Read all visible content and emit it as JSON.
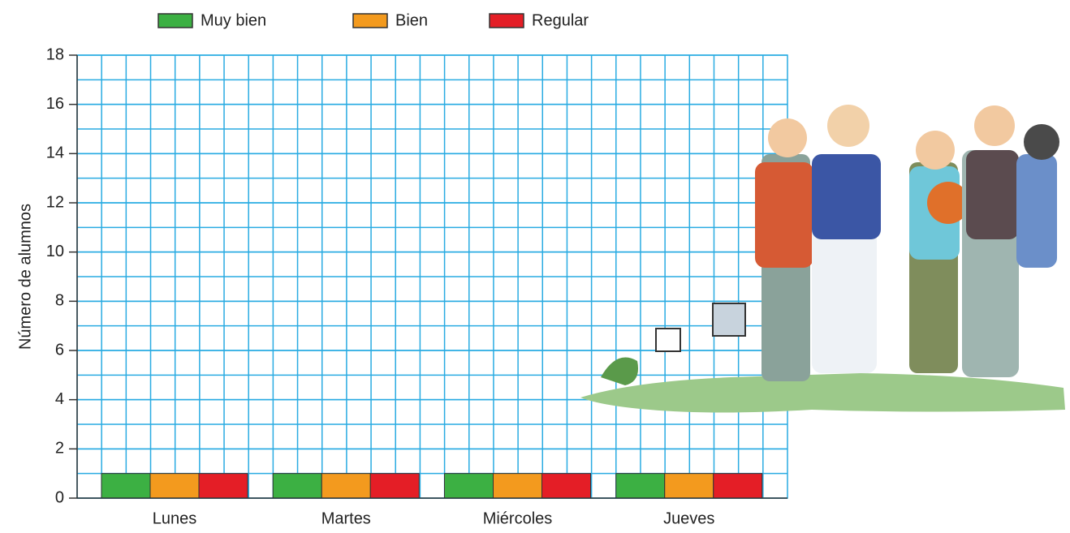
{
  "chart_data": {
    "type": "bar",
    "categories": [
      "Lunes",
      "Martes",
      "Miércoles",
      "Jueves"
    ],
    "series": [
      {
        "name": "Muy bien",
        "color": "#3cb043",
        "values": [
          1,
          1,
          1,
          1
        ]
      },
      {
        "name": "Bien",
        "color": "#f39a1e",
        "values": [
          1,
          1,
          1,
          1
        ]
      },
      {
        "name": "Regular",
        "color": "#e41e26",
        "values": [
          1,
          1,
          1,
          1
        ]
      }
    ],
    "y_label": "Número de alumnos",
    "ylim": [
      0,
      18
    ],
    "yticks": [
      0,
      2,
      4,
      6,
      8,
      10,
      12,
      14,
      16,
      18
    ],
    "grid": true,
    "grid_color": "#29abe2"
  }
}
